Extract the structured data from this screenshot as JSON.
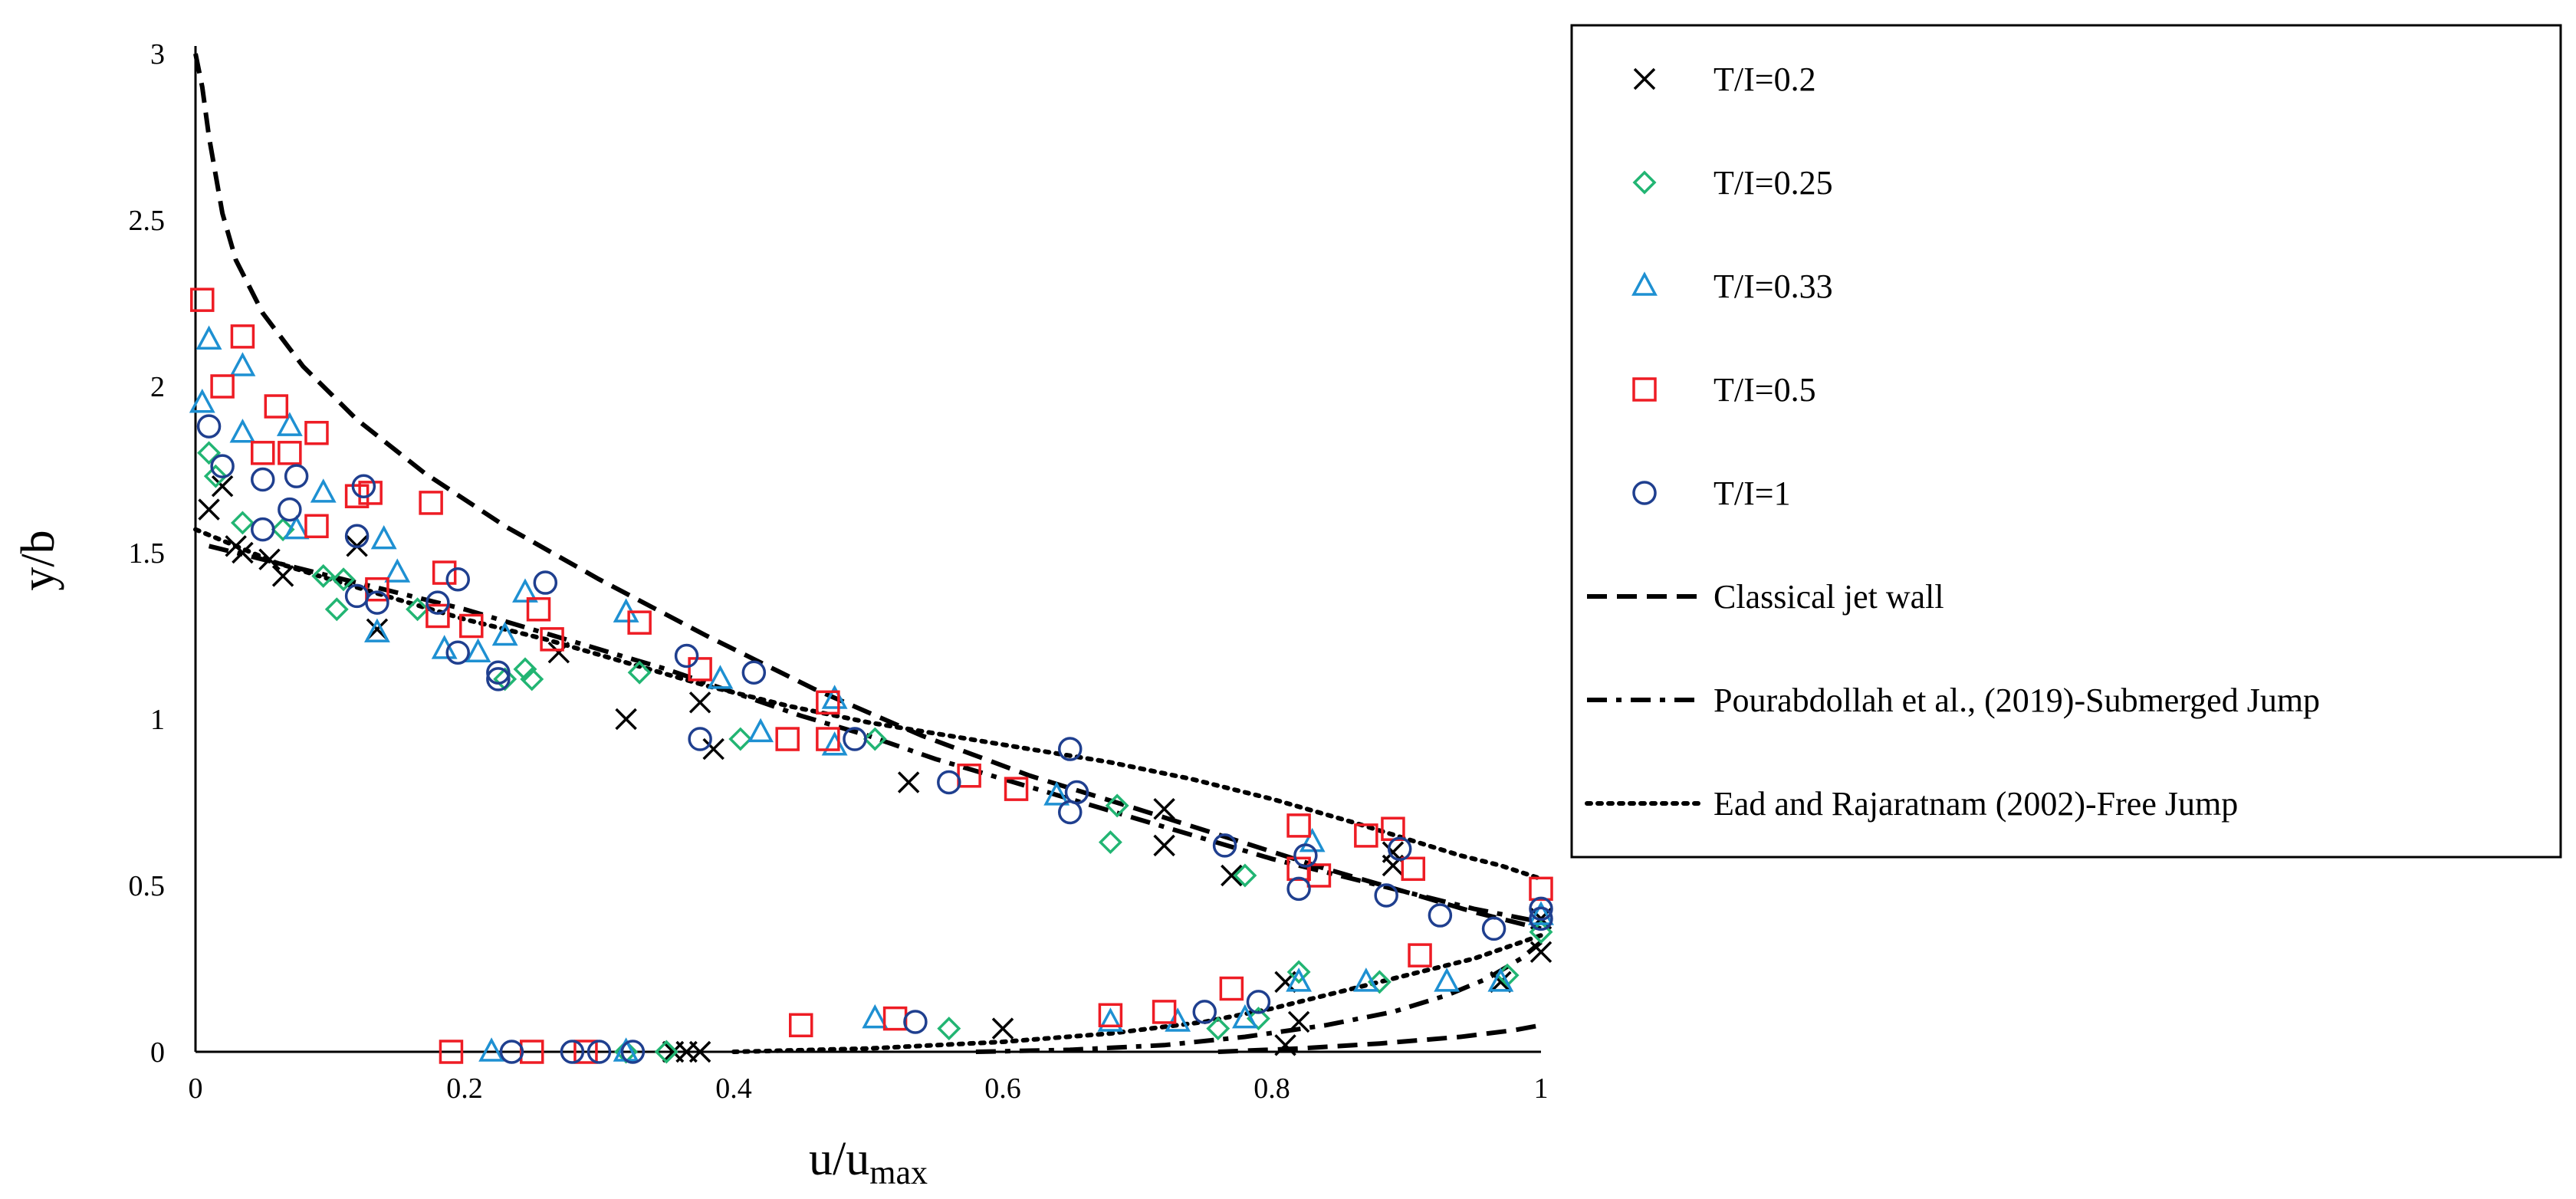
{
  "chart_data": {
    "type": "scatter",
    "title": "",
    "xlabel": "u/u",
    "xlabel_sub": "max",
    "ylabel": "y/b",
    "xlim": [
      0,
      1
    ],
    "ylim": [
      0,
      3
    ],
    "x_ticks": [
      {
        "value": 0,
        "label": "0"
      },
      {
        "value": 0.2,
        "label": "0.2"
      },
      {
        "value": 0.4,
        "label": "0.4"
      },
      {
        "value": 0.6,
        "label": "0.6"
      },
      {
        "value": 0.8,
        "label": "0.8"
      },
      {
        "value": 1,
        "label": "1"
      }
    ],
    "y_ticks": [
      {
        "value": 0,
        "label": "0"
      },
      {
        "value": 0.5,
        "label": "0.5"
      },
      {
        "value": 1,
        "label": "1"
      },
      {
        "value": 1.5,
        "label": "1.5"
      },
      {
        "value": 2,
        "label": "2"
      },
      {
        "value": 2.5,
        "label": "2.5"
      },
      {
        "value": 3,
        "label": "3"
      }
    ],
    "grid": false,
    "legend_position": "right",
    "series": [
      {
        "name": "T/I=0.2",
        "marker": "x",
        "color": "#000000",
        "points": [
          [
            0.01,
            1.63
          ],
          [
            0.02,
            1.7
          ],
          [
            0.03,
            1.52
          ],
          [
            0.035,
            1.5
          ],
          [
            0.055,
            1.48
          ],
          [
            0.065,
            1.43
          ],
          [
            0.12,
            1.52
          ],
          [
            0.135,
            1.27
          ],
          [
            0.27,
            1.2
          ],
          [
            0.32,
            1.0
          ],
          [
            0.375,
            1.05
          ],
          [
            0.385,
            0.91
          ],
          [
            0.53,
            0.81
          ],
          [
            0.72,
            0.62
          ],
          [
            0.72,
            0.73
          ],
          [
            0.77,
            0.53
          ],
          [
            0.89,
            0.56
          ],
          [
            0.89,
            0.6
          ],
          [
            0.97,
            0.21
          ],
          [
            0.81,
            0.21
          ],
          [
            0.82,
            0.09
          ],
          [
            0.6,
            0.07
          ],
          [
            0.355,
            0.0
          ],
          [
            0.365,
            0.0
          ],
          [
            0.375,
            0.0
          ],
          [
            0.81,
            0.02
          ],
          [
            1.0,
            0.3
          ],
          [
            1.0,
            0.4
          ]
        ]
      },
      {
        "name": "T/I=0.25",
        "marker": "diamond",
        "color": "#22b573",
        "points": [
          [
            0.01,
            1.8
          ],
          [
            0.015,
            1.73
          ],
          [
            0.035,
            1.59
          ],
          [
            0.065,
            1.57
          ],
          [
            0.095,
            1.43
          ],
          [
            0.105,
            1.33
          ],
          [
            0.11,
            1.42
          ],
          [
            0.165,
            1.33
          ],
          [
            0.23,
            1.12
          ],
          [
            0.245,
            1.15
          ],
          [
            0.25,
            1.12
          ],
          [
            0.33,
            1.14
          ],
          [
            0.405,
            0.94
          ],
          [
            0.505,
            0.94
          ],
          [
            0.68,
            0.63
          ],
          [
            0.685,
            0.74
          ],
          [
            0.78,
            0.53
          ],
          [
            0.82,
            0.24
          ],
          [
            0.88,
            0.21
          ],
          [
            0.975,
            0.23
          ],
          [
            0.76,
            0.07
          ],
          [
            0.79,
            0.1
          ],
          [
            0.56,
            0.07
          ],
          [
            0.35,
            0.0
          ],
          [
            0.32,
            0.0
          ],
          [
            1.0,
            0.36
          ]
        ]
      },
      {
        "name": "T/I=0.33",
        "marker": "triangle",
        "color": "#1e90d2",
        "points": [
          [
            0.005,
            1.95
          ],
          [
            0.01,
            2.14
          ],
          [
            0.035,
            2.06
          ],
          [
            0.035,
            1.86
          ],
          [
            0.07,
            1.88
          ],
          [
            0.075,
            1.57
          ],
          [
            0.095,
            1.68
          ],
          [
            0.135,
            1.26
          ],
          [
            0.14,
            1.54
          ],
          [
            0.15,
            1.44
          ],
          [
            0.185,
            1.21
          ],
          [
            0.21,
            1.2
          ],
          [
            0.23,
            1.25
          ],
          [
            0.245,
            1.38
          ],
          [
            0.32,
            1.32
          ],
          [
            0.39,
            1.12
          ],
          [
            0.42,
            0.96
          ],
          [
            0.475,
            1.06
          ],
          [
            0.475,
            0.92
          ],
          [
            0.64,
            0.77
          ],
          [
            0.82,
            0.21
          ],
          [
            0.83,
            0.63
          ],
          [
            0.87,
            0.21
          ],
          [
            0.93,
            0.21
          ],
          [
            0.97,
            0.21
          ],
          [
            0.68,
            0.09
          ],
          [
            0.73,
            0.09
          ],
          [
            0.78,
            0.1
          ],
          [
            0.505,
            0.1
          ],
          [
            0.22,
            0.0
          ],
          [
            0.32,
            0.0
          ],
          [
            1.0,
            0.41
          ]
        ]
      },
      {
        "name": "T/I=0.5",
        "marker": "square",
        "color": "#ee1c24",
        "points": [
          [
            0.005,
            2.26
          ],
          [
            0.02,
            2.0
          ],
          [
            0.035,
            2.15
          ],
          [
            0.05,
            1.8
          ],
          [
            0.06,
            1.94
          ],
          [
            0.07,
            1.8
          ],
          [
            0.09,
            1.86
          ],
          [
            0.09,
            1.58
          ],
          [
            0.12,
            1.67
          ],
          [
            0.13,
            1.68
          ],
          [
            0.135,
            1.39
          ],
          [
            0.175,
            1.65
          ],
          [
            0.18,
            1.31
          ],
          [
            0.185,
            1.44
          ],
          [
            0.205,
            1.28
          ],
          [
            0.255,
            1.33
          ],
          [
            0.265,
            1.24
          ],
          [
            0.33,
            1.29
          ],
          [
            0.375,
            1.15
          ],
          [
            0.44,
            0.94
          ],
          [
            0.47,
            0.94
          ],
          [
            0.47,
            1.05
          ],
          [
            0.575,
            0.83
          ],
          [
            0.61,
            0.79
          ],
          [
            0.82,
            0.55
          ],
          [
            0.82,
            0.68
          ],
          [
            0.835,
            0.53
          ],
          [
            0.87,
            0.65
          ],
          [
            0.89,
            0.67
          ],
          [
            0.905,
            0.55
          ],
          [
            0.91,
            0.29
          ],
          [
            0.77,
            0.19
          ],
          [
            0.72,
            0.12
          ],
          [
            0.68,
            0.11
          ],
          [
            0.45,
            0.08
          ],
          [
            0.52,
            0.1
          ],
          [
            0.19,
            0.0
          ],
          [
            0.25,
            0.0
          ],
          [
            0.29,
            0.0
          ],
          [
            1.0,
            0.49
          ]
        ]
      },
      {
        "name": "T/I=1",
        "marker": "circle",
        "color": "#1f3f8f",
        "points": [
          [
            0.01,
            1.88
          ],
          [
            0.02,
            1.76
          ],
          [
            0.05,
            1.72
          ],
          [
            0.05,
            1.57
          ],
          [
            0.07,
            1.63
          ],
          [
            0.075,
            1.73
          ],
          [
            0.12,
            1.55
          ],
          [
            0.12,
            1.37
          ],
          [
            0.125,
            1.7
          ],
          [
            0.135,
            1.35
          ],
          [
            0.18,
            1.35
          ],
          [
            0.195,
            1.42
          ],
          [
            0.195,
            1.2
          ],
          [
            0.225,
            1.12
          ],
          [
            0.225,
            1.14
          ],
          [
            0.26,
            1.41
          ],
          [
            0.365,
            1.19
          ],
          [
            0.375,
            0.94
          ],
          [
            0.415,
            1.14
          ],
          [
            0.49,
            0.94
          ],
          [
            0.56,
            0.81
          ],
          [
            0.65,
            0.72
          ],
          [
            0.65,
            0.91
          ],
          [
            0.655,
            0.78
          ],
          [
            0.765,
            0.62
          ],
          [
            0.82,
            0.49
          ],
          [
            0.825,
            0.59
          ],
          [
            0.885,
            0.47
          ],
          [
            0.895,
            0.61
          ],
          [
            0.925,
            0.41
          ],
          [
            0.965,
            0.37
          ],
          [
            0.79,
            0.15
          ],
          [
            0.75,
            0.12
          ],
          [
            0.535,
            0.09
          ],
          [
            0.235,
            0.0
          ],
          [
            0.28,
            0.0
          ],
          [
            0.3,
            0.0
          ],
          [
            0.325,
            0.0
          ],
          [
            1.0,
            0.4
          ],
          [
            1.0,
            0.43
          ]
        ]
      }
    ],
    "curves": [
      {
        "name": "Classical jet wall",
        "style": "dashed",
        "color": "#000000",
        "upper": [
          [
            0.0,
            3.0
          ],
          [
            0.005,
            2.9
          ],
          [
            0.01,
            2.75
          ],
          [
            0.02,
            2.52
          ],
          [
            0.03,
            2.38
          ],
          [
            0.05,
            2.22
          ],
          [
            0.08,
            2.06
          ],
          [
            0.12,
            1.9
          ],
          [
            0.17,
            1.74
          ],
          [
            0.23,
            1.58
          ],
          [
            0.3,
            1.42
          ],
          [
            0.38,
            1.25
          ],
          [
            0.46,
            1.09
          ],
          [
            0.54,
            0.95
          ],
          [
            0.62,
            0.83
          ],
          [
            0.7,
            0.73
          ],
          [
            0.77,
            0.64
          ],
          [
            0.84,
            0.55
          ],
          [
            0.9,
            0.48
          ],
          [
            0.95,
            0.42
          ],
          [
            1.0,
            0.37
          ]
        ],
        "lower": [
          [
            0.76,
            0.0
          ],
          [
            0.82,
            0.01
          ],
          [
            0.88,
            0.025
          ],
          [
            0.94,
            0.045
          ],
          [
            0.98,
            0.065
          ],
          [
            1.0,
            0.08
          ]
        ]
      },
      {
        "name": "Pourabdollah et al., (2019)-Submerged Jump",
        "style": "dashdot",
        "color": "#000000",
        "upper": [
          [
            0.01,
            1.52
          ],
          [
            0.05,
            1.48
          ],
          [
            0.1,
            1.43
          ],
          [
            0.15,
            1.38
          ],
          [
            0.2,
            1.33
          ],
          [
            0.25,
            1.27
          ],
          [
            0.3,
            1.21
          ],
          [
            0.35,
            1.15
          ],
          [
            0.4,
            1.08
          ],
          [
            0.45,
            1.01
          ],
          [
            0.5,
            0.95
          ],
          [
            0.55,
            0.88
          ],
          [
            0.6,
            0.82
          ],
          [
            0.65,
            0.76
          ],
          [
            0.7,
            0.7
          ],
          [
            0.75,
            0.64
          ],
          [
            0.8,
            0.58
          ],
          [
            0.85,
            0.53
          ],
          [
            0.9,
            0.48
          ],
          [
            0.95,
            0.43
          ],
          [
            1.0,
            0.39
          ]
        ],
        "lower": [
          [
            0.58,
            0.0
          ],
          [
            0.65,
            0.006
          ],
          [
            0.72,
            0.02
          ],
          [
            0.78,
            0.045
          ],
          [
            0.84,
            0.08
          ],
          [
            0.89,
            0.12
          ],
          [
            0.93,
            0.17
          ],
          [
            0.96,
            0.22
          ],
          [
            0.985,
            0.28
          ],
          [
            1.0,
            0.33
          ]
        ]
      },
      {
        "name": "Ead and Rajaratnam (2002)-Free Jump",
        "style": "dotted",
        "color": "#000000",
        "upper": [
          [
            0.0,
            1.57
          ],
          [
            0.03,
            1.52
          ],
          [
            0.06,
            1.47
          ],
          [
            0.1,
            1.42
          ],
          [
            0.15,
            1.36
          ],
          [
            0.2,
            1.3
          ],
          [
            0.26,
            1.24
          ],
          [
            0.32,
            1.17
          ],
          [
            0.38,
            1.1
          ],
          [
            0.44,
            1.04
          ],
          [
            0.5,
            0.99
          ],
          [
            0.56,
            0.95
          ],
          [
            0.62,
            0.91
          ],
          [
            0.68,
            0.87
          ],
          [
            0.74,
            0.82
          ],
          [
            0.8,
            0.76
          ],
          [
            0.86,
            0.69
          ],
          [
            0.9,
            0.64
          ],
          [
            0.94,
            0.59
          ],
          [
            0.97,
            0.56
          ],
          [
            1.0,
            0.52
          ]
        ],
        "lower": [
          [
            0.4,
            0.0
          ],
          [
            0.5,
            0.01
          ],
          [
            0.6,
            0.03
          ],
          [
            0.68,
            0.055
          ],
          [
            0.75,
            0.09
          ],
          [
            0.8,
            0.13
          ],
          [
            0.85,
            0.18
          ],
          [
            0.9,
            0.23
          ],
          [
            0.95,
            0.28
          ],
          [
            1.0,
            0.35
          ]
        ]
      }
    ]
  }
}
